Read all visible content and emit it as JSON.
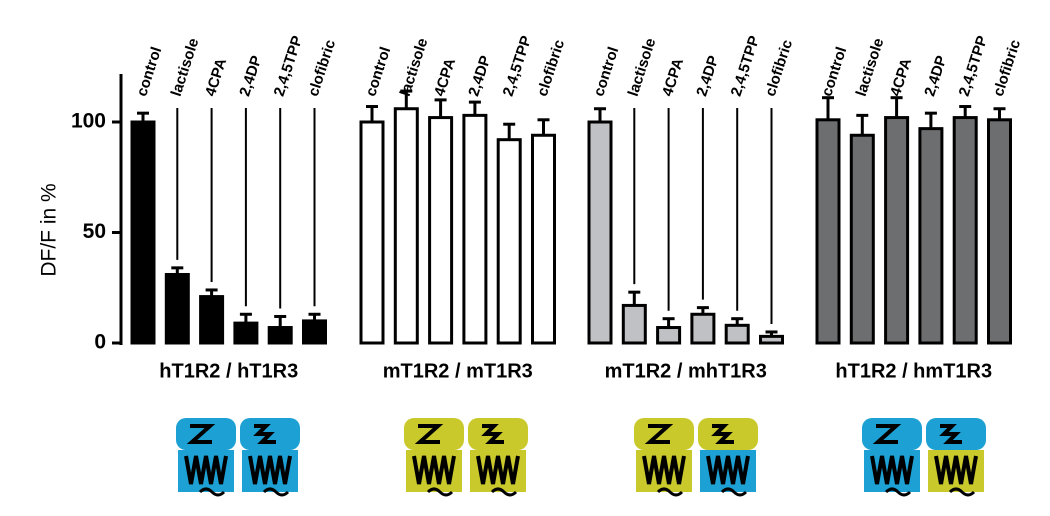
{
  "chart_data": {
    "type": "bar",
    "y_label": "DF/F in %",
    "categories": [
      "control",
      "lactisole",
      "4CPA",
      "2,4DP",
      "2,4,5TPP",
      "clofibric"
    ],
    "ylim": [
      0,
      120
    ],
    "yticks": [
      0,
      50,
      100
    ],
    "groups": [
      {
        "label": "hT1R2 / hT1R3",
        "color": "#000000",
        "values": [
          100,
          31,
          21,
          9,
          7,
          10
        ],
        "errors": [
          4,
          3,
          3,
          4,
          5,
          3
        ]
      },
      {
        "label": "mT1R2 / mT1R3",
        "color": "#ffffff",
        "values": [
          100,
          106,
          102,
          103,
          92,
          94
        ],
        "errors": [
          7,
          8,
          8,
          6,
          7,
          7
        ]
      },
      {
        "label": "mT1R2 / mhT1R3",
        "color": "#c0c1c5",
        "values": [
          100,
          17,
          7,
          13,
          8,
          3
        ],
        "errors": [
          6,
          6,
          4,
          3,
          3,
          2
        ]
      },
      {
        "label": "hT1R2 / hmT1R3",
        "color": "#6d6e70",
        "values": [
          101,
          94,
          102,
          97,
          102,
          101
        ],
        "errors": [
          10,
          9,
          9,
          7,
          5,
          5
        ]
      }
    ]
  }
}
